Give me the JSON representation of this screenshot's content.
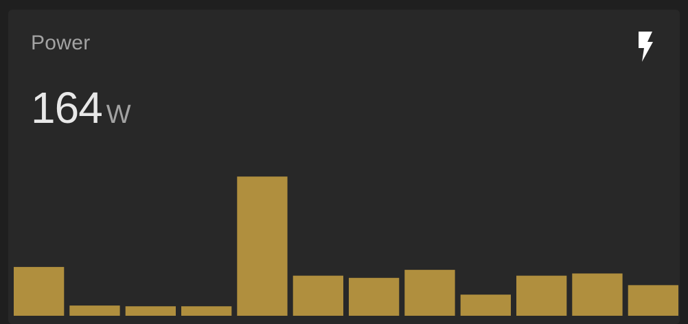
{
  "card": {
    "title": "Power",
    "value": "164",
    "unit": "W",
    "icon": "flash-icon"
  },
  "colors": {
    "background": "#282828",
    "bar": "#b08f3e",
    "title": "#a3a3a3",
    "value": "#e8e8e8",
    "icon": "#ffffff"
  },
  "chart_data": {
    "type": "bar",
    "values": [
      67,
      14,
      13,
      13,
      191,
      55,
      52,
      63,
      29,
      55,
      58,
      42
    ],
    "ylim": [
      0,
      420
    ]
  }
}
